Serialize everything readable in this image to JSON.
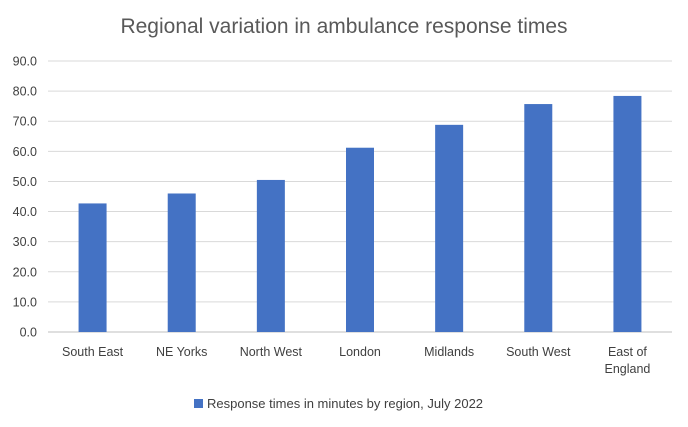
{
  "chart_data": {
    "type": "bar",
    "title": "Regional variation in ambulance response times",
    "categories": [
      "South East",
      "NE Yorks",
      "North West",
      "London",
      "Midlands",
      "South West",
      "East of England"
    ],
    "series": [
      {
        "name": "Response times in minutes by region, July 2022",
        "values": [
          42.7,
          46.0,
          50.5,
          61.2,
          68.8,
          75.7,
          78.4
        ],
        "color": "#4472c4"
      }
    ],
    "y_ticks": [
      "0.0",
      "10.0",
      "20.0",
      "30.0",
      "40.0",
      "50.0",
      "60.0",
      "70.0",
      "80.0",
      "90.0"
    ],
    "ylim": [
      0,
      90
    ],
    "grid": true,
    "legend_position": "bottom",
    "xlabel": "",
    "ylabel": ""
  }
}
